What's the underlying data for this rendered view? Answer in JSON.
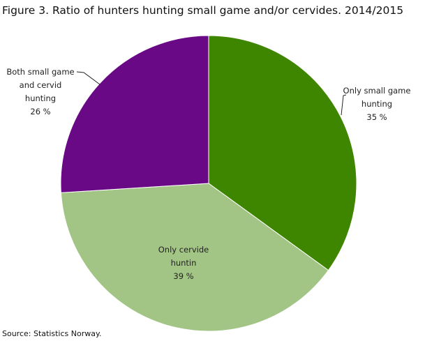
{
  "chart_data": {
    "type": "pie",
    "title": "Figure 3. Ratio of hunters hunting small game and/or cervides. 2014/2015",
    "source": "Source: Statistics Norway.",
    "start_angle": "top",
    "direction": "clockwise",
    "slices": [
      {
        "label_lines": [
          "Only small game",
          "hunting"
        ],
        "value_label": "35 %",
        "value": 35,
        "color": "#3f8600"
      },
      {
        "label_lines": [
          "Only cervide",
          "huntin"
        ],
        "value_label": "39 %",
        "value": 39,
        "color": "#a2c586"
      },
      {
        "label_lines": [
          "Both small game",
          "and cervid",
          "hunting"
        ],
        "value_label": "26 %",
        "value": 26,
        "color": "#690985"
      }
    ]
  }
}
